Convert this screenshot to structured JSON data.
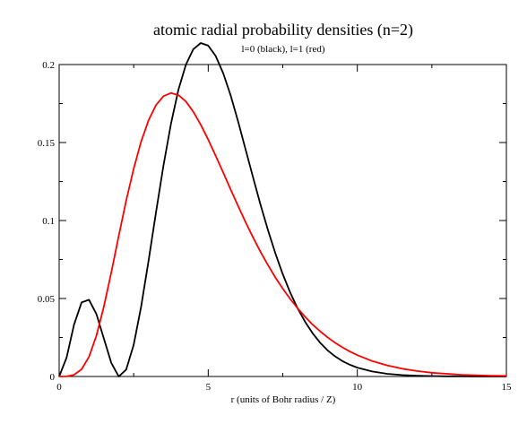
{
  "chart_data": {
    "type": "line",
    "title": "atomic radial probability densities (n=2)",
    "subtitle": "l=0 (black), l=1 (red)",
    "xlabel": "r (units of Bohr radius / Z)",
    "ylabel": "",
    "xlim": [
      0,
      15
    ],
    "ylim": [
      0,
      0.2
    ],
    "x_major_ticks": [
      0,
      5,
      10,
      15
    ],
    "x_tick_labels": [
      "0",
      "5",
      "10",
      "15"
    ],
    "x_minor_step": 2.5,
    "y_major_ticks": [
      0,
      0.05,
      0.1,
      0.15,
      0.2
    ],
    "y_tick_labels": [
      "0",
      "0.05",
      "0.1",
      "0.15",
      "0.2"
    ],
    "y_minor_step": 0.025,
    "grid": false,
    "legend": "none",
    "colors": {
      "l0": "#000000",
      "l1": "#ff0000",
      "axis": "#000000"
    },
    "series": [
      {
        "color": "#000000",
        "x": [
          0,
          0.25,
          0.5,
          0.75,
          1.0,
          1.25,
          1.5,
          1.75,
          2.0,
          2.25,
          2.5,
          2.75,
          3.0,
          3.25,
          3.5,
          3.75,
          4.0,
          4.25,
          4.5,
          4.75,
          5.0,
          5.25,
          5.5,
          5.75,
          6.0,
          6.25,
          6.5,
          6.75,
          7.0,
          7.25,
          7.5,
          7.75,
          8.0,
          8.25,
          8.5,
          8.75,
          9.0,
          9.25,
          9.5,
          9.75,
          10.0,
          10.5,
          11.0,
          11.5,
          12.0,
          12.5,
          13.0,
          13.5,
          14.0,
          14.5,
          15.0
        ],
        "y": [
          0,
          0.0121,
          0.0332,
          0.0475,
          0.0492,
          0.04,
          0.0243,
          0.0087,
          0.0,
          0.0044,
          0.0204,
          0.0449,
          0.0743,
          0.1054,
          0.1353,
          0.1621,
          0.1839,
          0.1999,
          0.2098,
          0.2138,
          0.2121,
          0.2055,
          0.1945,
          0.1803,
          0.1637,
          0.1458,
          0.128,
          0.1103,
          0.094,
          0.079,
          0.0656,
          0.0538,
          0.0436,
          0.035,
          0.0277,
          0.0217,
          0.0168,
          0.013,
          0.0099,
          0.0075,
          0.0057,
          0.0032,
          0.0017,
          0.0009,
          0.0005,
          0.0003,
          0.0001,
          0.0001,
          0.0,
          0.0,
          0.0
        ]
      },
      {
        "color": "#ff0000",
        "x": [
          0,
          0.25,
          0.5,
          0.75,
          1.0,
          1.25,
          1.5,
          1.75,
          2.0,
          2.25,
          2.5,
          2.75,
          3.0,
          3.25,
          3.5,
          3.75,
          4.0,
          4.25,
          4.5,
          4.75,
          5.0,
          5.25,
          5.5,
          5.75,
          6.0,
          6.25,
          6.5,
          6.75,
          7.0,
          7.25,
          7.5,
          7.75,
          8.0,
          8.25,
          8.5,
          8.75,
          9.0,
          9.25,
          9.5,
          9.75,
          10.0,
          10.5,
          11.0,
          11.5,
          12.0,
          12.5,
          13.0,
          13.5,
          14.0,
          14.5,
          15.0
        ],
        "y": [
          0,
          8e-05,
          0.0011,
          0.0046,
          0.0126,
          0.0262,
          0.0448,
          0.0668,
          0.0902,
          0.1128,
          0.1333,
          0.1507,
          0.1643,
          0.174,
          0.1797,
          0.1818,
          0.1804,
          0.1763,
          0.1697,
          0.1614,
          0.1519,
          0.1415,
          0.1308,
          0.12,
          0.1094,
          0.0991,
          0.0893,
          0.08,
          0.0715,
          0.0635,
          0.0563,
          0.0497,
          0.0437,
          0.0382,
          0.0333,
          0.029,
          0.0251,
          0.0217,
          0.0187,
          0.016,
          0.0137,
          0.0099,
          0.0071,
          0.005,
          0.0035,
          0.0024,
          0.0017,
          0.0011,
          0.0008,
          0.0005,
          0.0004
        ]
      }
    ]
  }
}
